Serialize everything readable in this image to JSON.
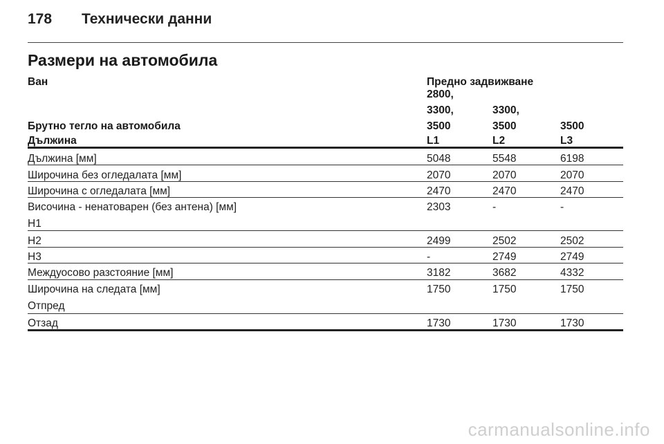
{
  "header": {
    "page_number": "178",
    "chapter": "Технически данни"
  },
  "section_title": "Размери на автомобила",
  "table": {
    "vehicle_label": "Ван",
    "drive_label": "Предно задвижване",
    "gross_weight_label": "Брутно тегло на автомобила",
    "length_label": "Дължина",
    "weight_values": [
      [
        "2800,",
        "3300,",
        "3500"
      ],
      [
        "3300,",
        "3500"
      ],
      [
        "3500"
      ]
    ],
    "length_codes": [
      "L1",
      "L2",
      "L3"
    ],
    "rows": [
      {
        "label": "Дължина [мм]",
        "sub": "",
        "values": [
          "5048",
          "5548",
          "6198"
        ]
      },
      {
        "label": "Широчина без огледалата [мм]",
        "sub": "",
        "values": [
          "2070",
          "2070",
          "2070"
        ]
      },
      {
        "label": "Широчина с огледалата [мм]",
        "sub": "",
        "values": [
          "2470",
          "2470",
          "2470"
        ]
      },
      {
        "label": "Височина - ненатоварен (без антена) [мм]",
        "sub": "H1",
        "values": [
          "2303",
          "-",
          "-"
        ]
      },
      {
        "label": "H2",
        "sub": "",
        "values": [
          "2499",
          "2502",
          "2502"
        ]
      },
      {
        "label": "H3",
        "sub": "",
        "values": [
          "-",
          "2749",
          "2749"
        ]
      },
      {
        "label": "Междуосово разстояние [мм]",
        "sub": "",
        "values": [
          "3182",
          "3682",
          "4332"
        ]
      },
      {
        "label": "Широчина на следата [мм]",
        "sub": "Отпред",
        "values": [
          "1750",
          "1750",
          "1750"
        ]
      },
      {
        "label": "Отзад",
        "sub": "",
        "values": [
          "1730",
          "1730",
          "1730"
        ]
      }
    ]
  },
  "watermark": "carmanualsonline.info"
}
